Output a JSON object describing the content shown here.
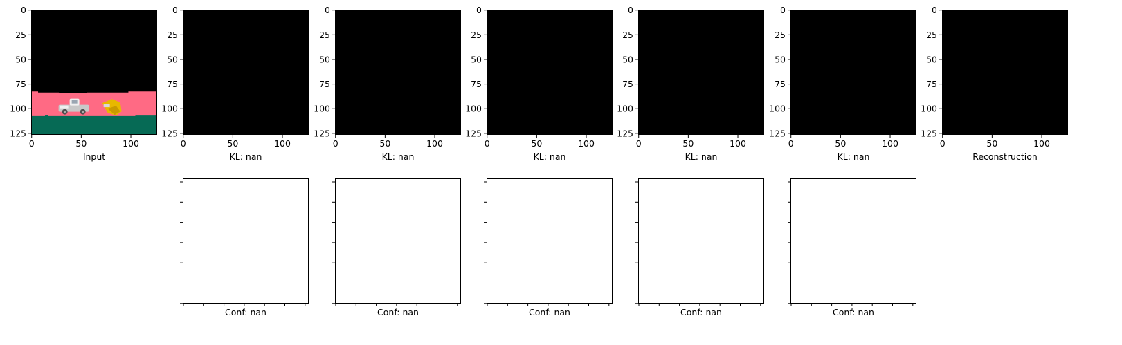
{
  "chart_data": [
    {
      "type": "image",
      "content": "input-scene",
      "xlabel": "Input",
      "xticks": [
        0,
        50,
        100
      ],
      "yticks": [
        0,
        25,
        50,
        75,
        100,
        125
      ],
      "xlim": [
        0,
        127
      ],
      "ylim": [
        127,
        0
      ],
      "scene": {
        "sky_color": "#000000",
        "background_color": "#FF6A84",
        "ground_color": "#066A55",
        "background_top_row": 83,
        "ground_top_row": 108,
        "objects": [
          {
            "name": "white-truck",
            "colors": [
              "#C8C8C8",
              "#F0F0F0",
              "#505050"
            ],
            "center_x": 43,
            "center_y": 98
          },
          {
            "name": "yellow-object",
            "colors": [
              "#E8B800",
              "#C99A00"
            ],
            "center_x": 80,
            "center_y": 99
          }
        ]
      }
    },
    {
      "type": "image",
      "content": "black",
      "xlabel": "KL: nan",
      "xticks": [
        0,
        50,
        100
      ],
      "yticks": [
        0,
        25,
        50,
        75,
        100,
        125
      ],
      "xlim": [
        0,
        127
      ],
      "ylim": [
        127,
        0
      ]
    },
    {
      "type": "image",
      "content": "black",
      "xlabel": "KL: nan",
      "xticks": [
        0,
        50,
        100
      ],
      "yticks": [
        0,
        25,
        50,
        75,
        100,
        125
      ],
      "xlim": [
        0,
        127
      ],
      "ylim": [
        127,
        0
      ]
    },
    {
      "type": "image",
      "content": "black",
      "xlabel": "KL: nan",
      "xticks": [
        0,
        50,
        100
      ],
      "yticks": [
        0,
        25,
        50,
        75,
        100,
        125
      ],
      "xlim": [
        0,
        127
      ],
      "ylim": [
        127,
        0
      ]
    },
    {
      "type": "image",
      "content": "black",
      "xlabel": "KL: nan",
      "xticks": [
        0,
        50,
        100
      ],
      "yticks": [
        0,
        25,
        50,
        75,
        100,
        125
      ],
      "xlim": [
        0,
        127
      ],
      "ylim": [
        127,
        0
      ]
    },
    {
      "type": "image",
      "content": "black",
      "xlabel": "KL: nan",
      "xticks": [
        0,
        50,
        100
      ],
      "yticks": [
        0,
        25,
        50,
        75,
        100,
        125
      ],
      "xlim": [
        0,
        127
      ],
      "ylim": [
        127,
        0
      ]
    },
    {
      "type": "image",
      "content": "black",
      "xlabel": "Reconstruction",
      "xticks": [
        0,
        50,
        100
      ],
      "yticks": [
        0,
        25,
        50,
        75,
        100,
        125
      ],
      "xlim": [
        0,
        127
      ],
      "ylim": [
        127,
        0
      ]
    },
    {
      "type": "image",
      "content": "empty",
      "xlabel": "Conf: nan",
      "tick_labels_shown": false
    },
    {
      "type": "image",
      "content": "empty",
      "xlabel": "Conf: nan",
      "tick_labels_shown": false
    },
    {
      "type": "image",
      "content": "empty",
      "xlabel": "Conf: nan",
      "tick_labels_shown": false
    },
    {
      "type": "image",
      "content": "empty",
      "xlabel": "Conf: nan",
      "tick_labels_shown": false
    },
    {
      "type": "image",
      "content": "empty",
      "xlabel": "Conf: nan",
      "tick_labels_shown": false
    }
  ]
}
